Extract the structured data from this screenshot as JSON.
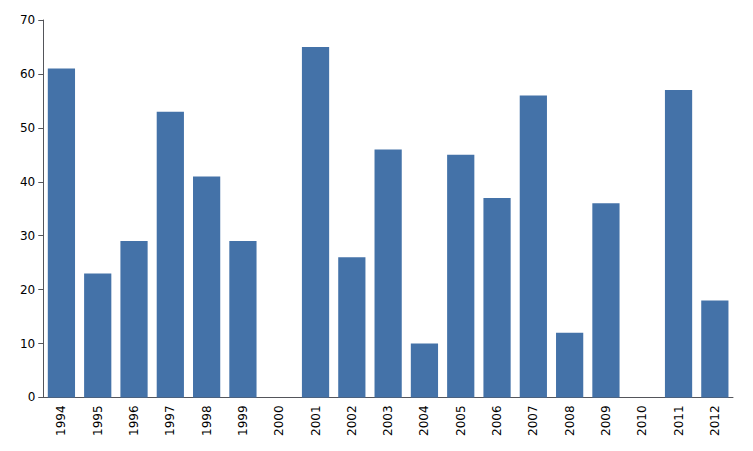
{
  "chart_data": {
    "type": "bar",
    "categories": [
      "1994",
      "1995",
      "1996",
      "1997",
      "1998",
      "1999",
      "2000",
      "2001",
      "2002",
      "2003",
      "2004",
      "2005",
      "2006",
      "2007",
      "2008",
      "2009",
      "2010",
      "2011",
      "2012"
    ],
    "values": [
      61,
      23,
      29,
      53,
      41,
      29,
      0,
      65,
      26,
      46,
      10,
      45,
      37,
      56,
      12,
      36,
      0,
      57,
      18
    ],
    "color": "#4472A8",
    "ylim": [
      0,
      70
    ],
    "yticks": [
      0,
      10,
      20,
      30,
      40,
      50,
      60,
      70
    ],
    "grid": false
  }
}
